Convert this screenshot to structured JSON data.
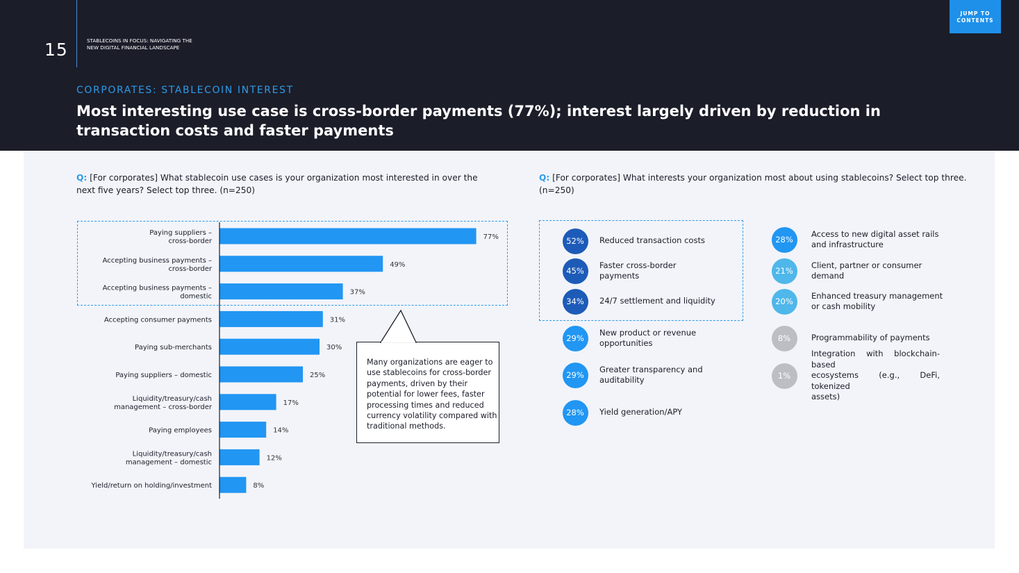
{
  "header": {
    "page_number": "15",
    "report_title": "STABLECOINS IN FOCUS: NAVIGATING THE NEW DIGITAL FINANCIAL LANDSCAPE",
    "jump_button": "JUMP TO CONTENTS",
    "kicker": "CORPORATES: STABLECOIN INTEREST",
    "headline": "Most interesting use case is cross-border payments (77%); interest largely driven by reduction in transaction costs and faster payments"
  },
  "left": {
    "q_label": "Q:",
    "question": "[For corporates] What stablecoin use cases is your organization most interested in over the next five years? Select top three. (n=250)",
    "callout": "Many organizations are eager to use stablecoins for cross-border payments, driven by their potential for lower fees, faster processing times and reduced currency volatility compared with traditional methods."
  },
  "right": {
    "q_label": "Q:",
    "question": "[For corporates] What interests your organization most about using stablecoins? Select top three. (n=250)"
  },
  "colors": {
    "bar": "#2196f3",
    "dark_blue": "#1d5bb8",
    "mid_blue": "#2196f3",
    "light_blue": "#4fb7ea",
    "grey": "#bcbec4",
    "dash": "#2e9be8"
  },
  "chart_data": [
    {
      "type": "bar",
      "orientation": "horizontal",
      "categories": [
        [
          "Paying suppliers –",
          "cross-border"
        ],
        [
          "Accepting business payments –",
          "cross-border"
        ],
        [
          "Accepting business payments –",
          "domestic"
        ],
        [
          "Accepting consumer payments"
        ],
        [
          "Paying sub-merchants"
        ],
        [
          "Paying suppliers – domestic"
        ],
        [
          "Liquidity/treasury/cash",
          "management – cross-border"
        ],
        [
          "Paying employees"
        ],
        [
          "Liquidity/treasury/cash",
          "management – domestic"
        ],
        [
          "Yield/return on holding/investment"
        ]
      ],
      "values": [
        77,
        49,
        37,
        31,
        30,
        25,
        17,
        14,
        12,
        8
      ],
      "labels": [
        "77%",
        "49%",
        "37%",
        "31%",
        "30%",
        "25%",
        "17%",
        "14%",
        "12%",
        "8%"
      ],
      "xlim": [
        0,
        100
      ]
    },
    {
      "type": "table",
      "items": [
        {
          "value": 52,
          "label": "52%",
          "text": [
            "Reduced transaction costs"
          ],
          "tone": "dark_blue"
        },
        {
          "value": 45,
          "label": "45%",
          "text": [
            "Faster cross-border",
            "payments"
          ],
          "tone": "dark_blue"
        },
        {
          "value": 34,
          "label": "34%",
          "text": [
            "24/7 settlement and liquidity"
          ],
          "tone": "dark_blue"
        },
        {
          "value": 29,
          "label": "29%",
          "text": [
            "New product or revenue",
            "opportunities"
          ],
          "tone": "mid_blue"
        },
        {
          "value": 29,
          "label": "29%",
          "text": [
            "Greater transparency and",
            "auditability"
          ],
          "tone": "mid_blue"
        },
        {
          "value": 28,
          "label": "28%",
          "text": [
            "Yield generation/APY"
          ],
          "tone": "mid_blue"
        },
        {
          "value": 28,
          "label": "28%",
          "text": [
            "Access to new digital asset rails",
            "and infrastructure"
          ],
          "tone": "mid_blue"
        },
        {
          "value": 21,
          "label": "21%",
          "text": [
            "Client, partner or consumer",
            "demand"
          ],
          "tone": "light_blue"
        },
        {
          "value": 20,
          "label": "20%",
          "text": [
            "Enhanced treasury management",
            "or cash mobility"
          ],
          "tone": "light_blue"
        },
        {
          "value": 8,
          "label": "8%",
          "text": [
            "Programmability of payments"
          ],
          "tone": "grey"
        },
        {
          "value": 1,
          "label": "1%",
          "text": [
            "Integration with blockchain-based",
            "ecosystems (e.g., DeFi, tokenized",
            "assets)"
          ],
          "tone": "grey"
        }
      ]
    }
  ]
}
